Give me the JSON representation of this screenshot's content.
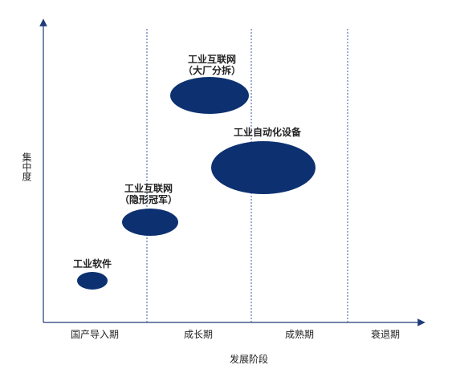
{
  "axes": {
    "x_label": "发展阶段",
    "y_label": "集中度"
  },
  "stages": [
    {
      "label": "国产导入期"
    },
    {
      "label": "成长期"
    },
    {
      "label": "成熟期"
    },
    {
      "label": "衰退期"
    }
  ],
  "bubbles": [
    {
      "line1": "工业软件",
      "line2": ""
    },
    {
      "line1": "工业互联网",
      "line2": "（隐形冠军）"
    },
    {
      "line1": "工业互联网",
      "line2": "（大厂分拆）"
    },
    {
      "line1": "工业自动化设备",
      "line2": ""
    }
  ],
  "colors": {
    "bubble": "#0d3170",
    "axis": "#1f3b78",
    "divider": "#3a5aa0"
  }
}
